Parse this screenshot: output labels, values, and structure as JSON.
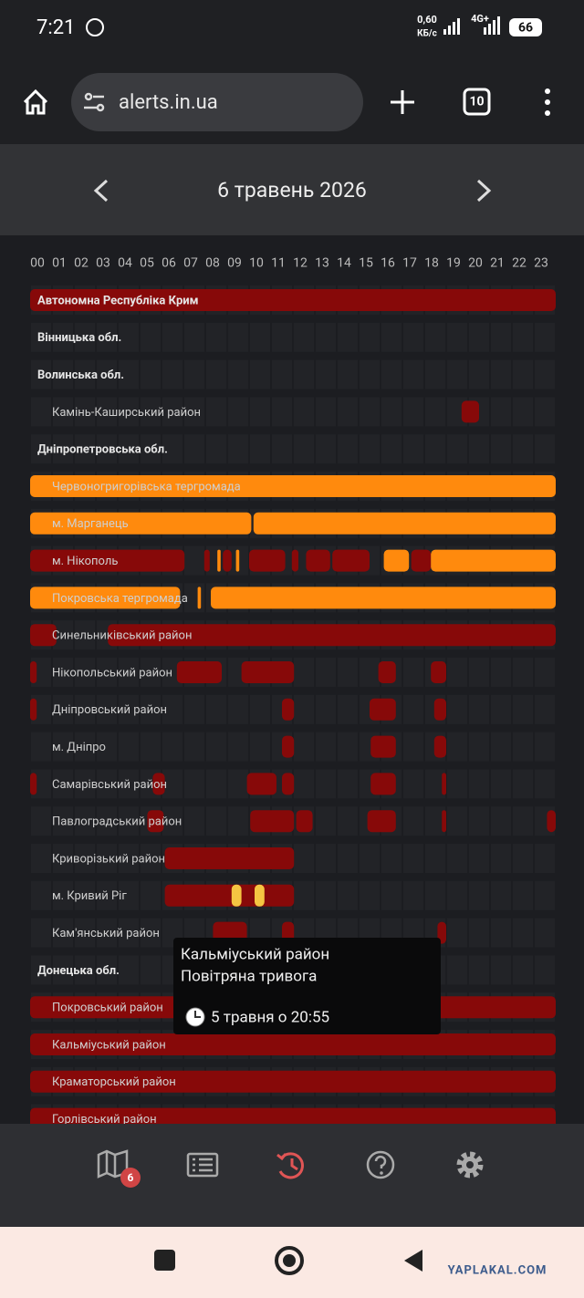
{
  "status_bar": {
    "time": "7:21",
    "speed": "0,60",
    "speed_unit": "КБ/с",
    "network": "4G+",
    "battery": "66"
  },
  "browser": {
    "url": "alerts.in.ua",
    "tabs": "10"
  },
  "header": {
    "date": "6 травень 2026"
  },
  "hours": [
    "00",
    "01",
    "02",
    "03",
    "04",
    "05",
    "06",
    "07",
    "08",
    "09",
    "10",
    "11",
    "12",
    "13",
    "14",
    "15",
    "16",
    "17",
    "18",
    "19",
    "20",
    "21",
    "22",
    "23"
  ],
  "regions": [
    {
      "name": "Автономна Республіка Крим",
      "alerts": [
        {
          "start": 0,
          "end": 24,
          "color": "#870909"
        }
      ],
      "districts": []
    },
    {
      "name": "Вінницька обл.",
      "alerts": [],
      "districts": []
    },
    {
      "name": "Волинська обл.",
      "alerts": [],
      "districts": [
        {
          "name": "Камінь-Каширський район",
          "alerts": [
            {
              "start": 19.7,
              "end": 20.5,
              "color": "#870909"
            }
          ]
        }
      ]
    },
    {
      "name": "Дніпропетровська обл.",
      "alerts": [],
      "districts": [
        {
          "name": "Червоногригорівська тергромада",
          "alerts": [
            {
              "start": 0,
              "end": 24,
              "color": "#ff8a0d"
            }
          ]
        },
        {
          "name": "м. Марганець",
          "alerts": [
            {
              "start": 0,
              "end": 10.1,
              "color": "#ff8a0d"
            },
            {
              "start": 10.2,
              "end": 24,
              "color": "#ff8a0d"
            }
          ]
        },
        {
          "name": "м. Нікополь",
          "alerts": [
            {
              "start": 0,
              "end": 7.05,
              "color": "#870909"
            },
            {
              "start": 7.95,
              "end": 8.2,
              "color": "#870909"
            },
            {
              "start": 8.55,
              "end": 8.7,
              "color": "#ff8a0d"
            },
            {
              "start": 8.8,
              "end": 9.2,
              "color": "#870909"
            },
            {
              "start": 9.4,
              "end": 9.55,
              "color": "#ff8a0d"
            },
            {
              "start": 10,
              "end": 11.65,
              "color": "#870909"
            },
            {
              "start": 11.95,
              "end": 12.25,
              "color": "#870909"
            },
            {
              "start": 12.6,
              "end": 13.7,
              "color": "#870909"
            },
            {
              "start": 13.8,
              "end": 15.5,
              "color": "#870909"
            },
            {
              "start": 16.15,
              "end": 17.3,
              "color": "#ff8a0d"
            },
            {
              "start": 17.4,
              "end": 18.3,
              "color": "#870909"
            },
            {
              "start": 18.3,
              "end": 24,
              "color": "#ff8a0d"
            }
          ]
        },
        {
          "name": "Покровська тергромада",
          "alerts": [
            {
              "start": 0,
              "end": 6.85,
              "color": "#ff8a0d"
            },
            {
              "start": 7.65,
              "end": 7.8,
              "color": "#ff8a0d"
            },
            {
              "start": 8.25,
              "end": 24,
              "color": "#ff8a0d"
            }
          ]
        },
        {
          "name": "Синельниківський район",
          "alerts": [
            {
              "start": 0,
              "end": 1.2,
              "color": "#870909"
            },
            {
              "start": 3.55,
              "end": 24,
              "color": "#870909"
            }
          ]
        },
        {
          "name": "Нікопольський район",
          "alerts": [
            {
              "start": 0,
              "end": 0.3,
              "color": "#870909"
            },
            {
              "start": 6.7,
              "end": 8.75,
              "color": "#870909"
            },
            {
              "start": 9.65,
              "end": 12.05,
              "color": "#870909"
            },
            {
              "start": 15.9,
              "end": 16.7,
              "color": "#870909"
            },
            {
              "start": 18.3,
              "end": 19,
              "color": "#870909"
            }
          ]
        },
        {
          "name": "Дніпровський район",
          "alerts": [
            {
              "start": 0,
              "end": 0.3,
              "color": "#870909"
            },
            {
              "start": 11.5,
              "end": 12.05,
              "color": "#870909"
            },
            {
              "start": 15.5,
              "end": 16.7,
              "color": "#870909"
            },
            {
              "start": 18.45,
              "end": 19,
              "color": "#870909"
            }
          ]
        },
        {
          "name": "м. Дніпро",
          "alerts": [
            {
              "start": 11.5,
              "end": 12.05,
              "color": "#870909"
            },
            {
              "start": 15.55,
              "end": 16.7,
              "color": "#870909"
            },
            {
              "start": 18.45,
              "end": 19,
              "color": "#870909"
            }
          ]
        },
        {
          "name": "Самарівський район",
          "alerts": [
            {
              "start": 0,
              "end": 0.3,
              "color": "#870909"
            },
            {
              "start": 5.6,
              "end": 6.15,
              "color": "#870909"
            },
            {
              "start": 9.9,
              "end": 11.25,
              "color": "#870909"
            },
            {
              "start": 11.5,
              "end": 12.05,
              "color": "#870909"
            },
            {
              "start": 15.55,
              "end": 16.7,
              "color": "#870909"
            },
            {
              "start": 18.8,
              "end": 19,
              "color": "#870909"
            }
          ]
        },
        {
          "name": "Павлоградський район",
          "alerts": [
            {
              "start": 5.35,
              "end": 6.1,
              "color": "#870909"
            },
            {
              "start": 10.05,
              "end": 12.05,
              "color": "#870909"
            },
            {
              "start": 12.15,
              "end": 12.9,
              "color": "#870909"
            },
            {
              "start": 15.4,
              "end": 16.7,
              "color": "#870909"
            },
            {
              "start": 18.8,
              "end": 19,
              "color": "#870909"
            },
            {
              "start": 23.6,
              "end": 24,
              "color": "#870909"
            }
          ]
        },
        {
          "name": "Криворізький район",
          "alerts": [
            {
              "start": 6.15,
              "end": 12.05,
              "color": "#870909"
            }
          ]
        },
        {
          "name": "м. Кривий Ріг",
          "alerts": [
            {
              "start": 6.15,
              "end": 12.05,
              "color": "#870909"
            },
            {
              "start": 9.2,
              "end": 9.65,
              "color": "#f5c542"
            },
            {
              "start": 10.25,
              "end": 10.7,
              "color": "#f5c542"
            }
          ]
        },
        {
          "name": "Кам'янський район",
          "alerts": [
            {
              "start": 8.35,
              "end": 9.9,
              "color": "#870909"
            },
            {
              "start": 11.5,
              "end": 12.05,
              "color": "#870909"
            },
            {
              "start": 18.6,
              "end": 19,
              "color": "#870909"
            }
          ]
        }
      ]
    },
    {
      "name": "Донецька обл.",
      "alerts": [],
      "districts": [
        {
          "name": "Покровський район",
          "alerts": [
            {
              "start": 0,
              "end": 24,
              "color": "#870909"
            }
          ]
        },
        {
          "name": "Кальміуський район",
          "alerts": [
            {
              "start": 0,
              "end": 24,
              "color": "#870909"
            }
          ]
        },
        {
          "name": "Краматорський район",
          "alerts": [
            {
              "start": 0,
              "end": 24,
              "color": "#870909"
            }
          ]
        },
        {
          "name": "Горлівський район",
          "alerts": [
            {
              "start": 0,
              "end": 24,
              "color": "#870909"
            }
          ]
        }
      ]
    }
  ],
  "tooltip": {
    "title": "Кальміуський район",
    "type": "Повітряна тривога",
    "time": "5 травня о 20:55"
  },
  "nav": {
    "badge": "6"
  },
  "watermark": "YAPLAKAL.COM"
}
